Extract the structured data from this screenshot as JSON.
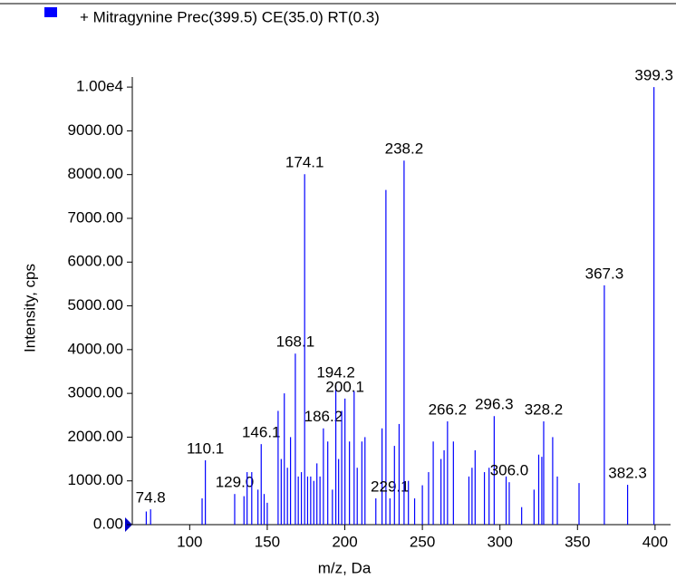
{
  "chart_data": {
    "type": "spectrum",
    "series": [
      {
        "name": "+ Mitragynine Prec(399.5) CE(35.0) RT(0.3)",
        "color": "#0000ff"
      }
    ],
    "x_label": "m/z, Da",
    "y_label": "Intensity, cps",
    "x": [
      72.0,
      74.8,
      108.0,
      110.1,
      129.0,
      135.0,
      137.0,
      140.0,
      144.0,
      146.1,
      148.0,
      150.0,
      157.0,
      159.0,
      161.0,
      163.0,
      165.0,
      168.1,
      170.0,
      172.0,
      174.1,
      176.0,
      178.0,
      180.0,
      182.0,
      184.0,
      186.2,
      189.0,
      192.0,
      194.2,
      196.0,
      198.0,
      200.1,
      203.0,
      206.0,
      208.0,
      211.0,
      213.0,
      220.0,
      224.0,
      226.5,
      229.1,
      232.0,
      235.0,
      238.2,
      241.0,
      245.0,
      250.0,
      254.0,
      257.0,
      262.0,
      264.0,
      266.2,
      270.0,
      280.0,
      282.0,
      284.0,
      290.0,
      293.0,
      296.3,
      304.0,
      306.0,
      314.0,
      322.0,
      325.0,
      327.0,
      328.2,
      334.0,
      337.0,
      351.0,
      367.3,
      382.3,
      399.3
    ],
    "values": [
      300,
      350,
      600,
      1470,
      700,
      650,
      1200,
      1200,
      800,
      1840,
      700,
      500,
      2600,
      1500,
      3000,
      1300,
      2000,
      3910,
      1100,
      1200,
      8010,
      1100,
      1100,
      1000,
      1400,
      1100,
      2200,
      1900,
      800,
      3210,
      1500,
      2600,
      2880,
      1900,
      3050,
      1300,
      1900,
      2000,
      600,
      2200,
      7650,
      600,
      1800,
      2300,
      8320,
      1000,
      600,
      900,
      1200,
      1900,
      1500,
      1700,
      2360,
      1900,
      1100,
      1300,
      1700,
      1200,
      1300,
      2480,
      1100,
      970,
      400,
      800,
      1600,
      1550,
      2360,
      2000,
      1100,
      950,
      5470,
      910,
      10000
    ],
    "x_labels": [
      null,
      "74.8",
      null,
      "110.1",
      "129.0",
      null,
      null,
      null,
      null,
      "146.1",
      null,
      null,
      null,
      null,
      null,
      null,
      null,
      "168.1",
      null,
      null,
      "174.1",
      null,
      null,
      null,
      null,
      null,
      "186.2",
      null,
      null,
      "194.2",
      null,
      null,
      "200.1",
      null,
      null,
      null,
      null,
      null,
      null,
      null,
      null,
      "229.1",
      null,
      null,
      "238.2",
      null,
      null,
      null,
      null,
      null,
      null,
      null,
      "266.2",
      null,
      null,
      null,
      null,
      null,
      null,
      "296.3",
      null,
      "306.0",
      null,
      null,
      null,
      null,
      "328.2",
      null,
      null,
      null,
      "367.3",
      "382.3",
      "399.3"
    ],
    "xlim": [
      63,
      410
    ],
    "ylim": [
      0,
      10230
    ],
    "xticks": [
      100,
      150,
      200,
      250,
      300,
      350,
      400
    ],
    "yticks": [
      {
        "value": 0,
        "label": "0.00"
      },
      {
        "value": 1000,
        "label": "1000.00"
      },
      {
        "value": 2000,
        "label": "2000.00"
      },
      {
        "value": 3000,
        "label": "3000.00"
      },
      {
        "value": 4000,
        "label": "4000.00"
      },
      {
        "value": 5000,
        "label": "5000.00"
      },
      {
        "value": 6000,
        "label": "6000.00"
      },
      {
        "value": 7000,
        "label": "7000.00"
      },
      {
        "value": 8000,
        "label": "8000.00"
      },
      {
        "value": 9000,
        "label": "9000.00"
      },
      {
        "value": 10000,
        "label": "1.00e4"
      }
    ]
  }
}
